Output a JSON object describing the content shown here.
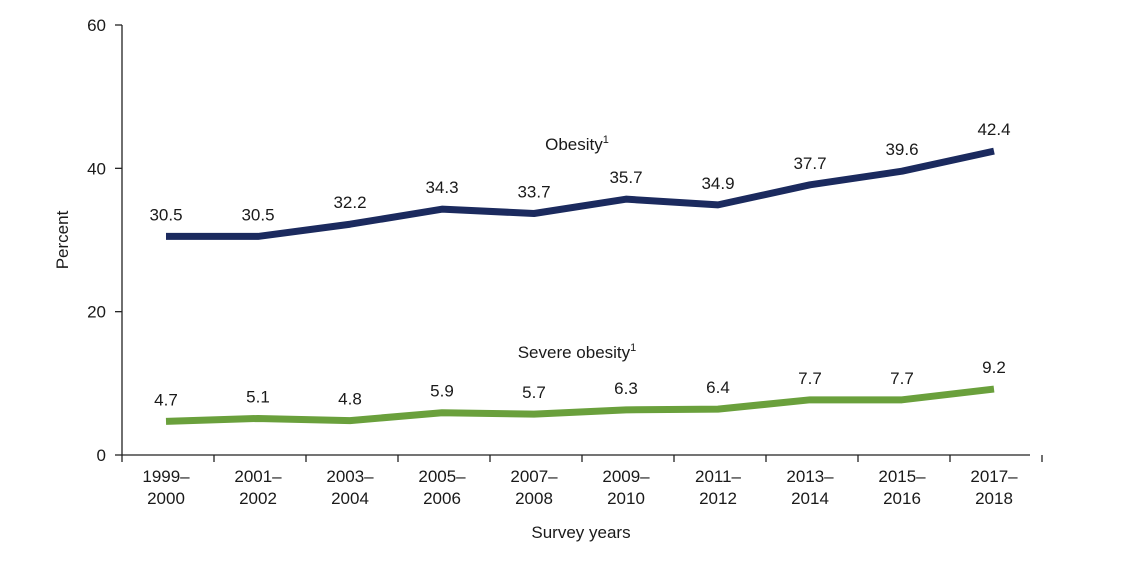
{
  "chart_data": {
    "type": "line",
    "xlabel": "Survey years",
    "ylabel": "Percent",
    "ylim": [
      0,
      60
    ],
    "yticks": [
      "0",
      "20",
      "40",
      "60"
    ],
    "grid": false,
    "categories": [
      [
        "1999–",
        "2000"
      ],
      [
        "2001–",
        "2002"
      ],
      [
        "2003–",
        "2004"
      ],
      [
        "2005–",
        "2006"
      ],
      [
        "2007–",
        "2008"
      ],
      [
        "2009–",
        "2010"
      ],
      [
        "2011–",
        "2012"
      ],
      [
        "2013–",
        "2014"
      ],
      [
        "2015–",
        "2016"
      ],
      [
        "2017–",
        "2018"
      ]
    ],
    "series": [
      {
        "name": "Obesity",
        "footnote": "1",
        "color": "#1b2a5e",
        "values": [
          30.5,
          30.5,
          32.2,
          34.3,
          33.7,
          35.7,
          34.9,
          37.7,
          39.6,
          42.4
        ],
        "labels": [
          "30.5",
          "30.5",
          "32.2",
          "34.3",
          "33.7",
          "35.7",
          "34.9",
          "37.7",
          "39.6",
          "42.4"
        ]
      },
      {
        "name": "Severe obesity",
        "footnote": "1",
        "color": "#6aa03c",
        "values": [
          4.7,
          5.1,
          4.8,
          5.9,
          5.7,
          6.3,
          6.4,
          7.7,
          7.7,
          9.2
        ],
        "labels": [
          "4.7",
          "5.1",
          "4.8",
          "5.9",
          "5.7",
          "6.3",
          "6.4",
          "7.7",
          "7.7",
          "9.2"
        ]
      }
    ]
  }
}
